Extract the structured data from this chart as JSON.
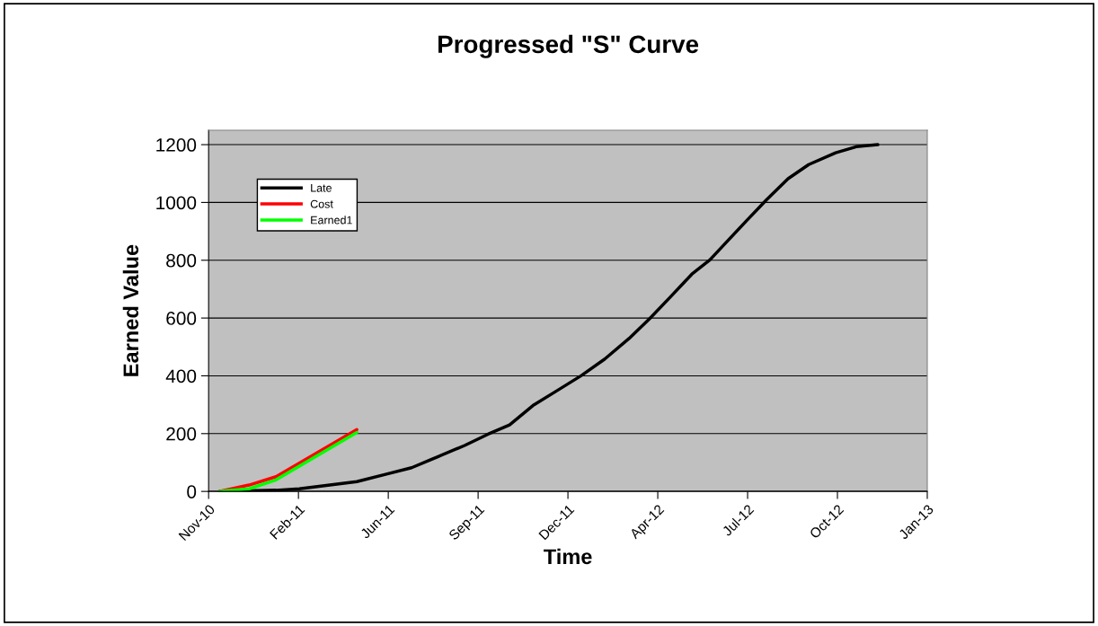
{
  "chart_data": {
    "type": "line",
    "title": "Progressed \"S\" Curve",
    "xlabel": "Time",
    "ylabel": "Earned Value",
    "series": [
      {
        "name": "Late",
        "color": "#000000",
        "x": [
          "2010-12-02",
          "2011-02-03",
          "2011-03-01",
          "2011-04-04",
          "2011-05-04",
          "2011-06-06",
          "2011-07-04",
          "2011-08-02",
          "2011-09-01",
          "2011-09-27",
          "2011-10-21",
          "2011-11-16",
          "2011-12-13",
          "2012-01-09",
          "2012-02-04",
          "2012-03-02",
          "2012-03-25",
          "2012-04-18",
          "2012-05-11",
          "2012-05-31",
          "2012-06-17",
          "2012-07-10",
          "2012-08-02",
          "2012-08-26",
          "2012-09-18",
          "2012-10-18",
          "2012-11-10",
          "2012-12-04"
        ],
        "values": [
          0,
          4,
          9,
          22,
          34,
          60,
          82,
          120,
          159,
          198,
          230,
          297,
          349,
          401,
          458,
          529,
          598,
          676,
          752,
          801,
          858,
          934,
          1009,
          1082,
          1131,
          1172,
          1193,
          1200
        ]
      },
      {
        "name": "Cost",
        "color": "#ff0000",
        "x": [
          "2010-12-02",
          "2011-01-04",
          "2011-02-03",
          "2011-05-04"
        ],
        "values": [
          0,
          22,
          51,
          214
        ]
      },
      {
        "name": "Earned1",
        "color": "#00ff00",
        "x": [
          "2010-12-02",
          "2011-01-04",
          "2011-02-03",
          "2011-05-04"
        ],
        "values": [
          0,
          9,
          40,
          204
        ]
      }
    ],
    "xlim": [
      "2010-11-20",
      "2013-01-28"
    ],
    "xticks": [
      {
        "value": "2010-11-20",
        "label": "Nov-10"
      },
      {
        "value": "2011-02-28",
        "label": "Feb-11"
      },
      {
        "value": "2011-06-08",
        "label": "Jun-11"
      },
      {
        "value": "2011-09-16",
        "label": "Sep-11"
      },
      {
        "value": "2011-12-25",
        "label": "Dec-11"
      },
      {
        "value": "2012-04-03",
        "label": "Apr-12"
      },
      {
        "value": "2012-07-12",
        "label": "Jul-12"
      },
      {
        "value": "2012-10-20",
        "label": "Oct-12"
      },
      {
        "value": "2013-01-28",
        "label": "Jan-13"
      }
    ],
    "ylim": [
      0,
      1250
    ],
    "yticks": [
      0,
      200,
      400,
      600,
      800,
      1000,
      1200
    ],
    "grid": "y",
    "legend": "top left",
    "marker": "none",
    "line_style": "solid"
  }
}
